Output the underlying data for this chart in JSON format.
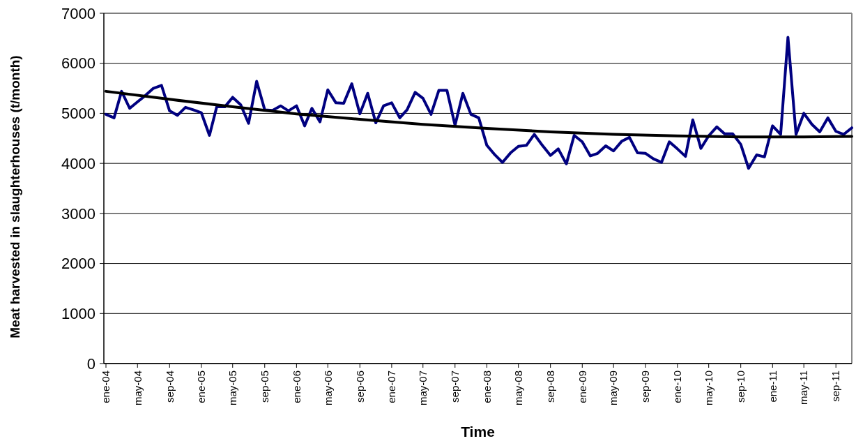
{
  "chart_data": {
    "type": "line",
    "xlabel": "Time",
    "ylabel": "Meat harvested in slaughterhouses (t/month)",
    "x": [
      "2004-01",
      "2004-02",
      "2004-03",
      "2004-04",
      "2004-05",
      "2004-06",
      "2004-07",
      "2004-08",
      "2004-09",
      "2004-10",
      "2004-11",
      "2004-12",
      "2005-01",
      "2005-02",
      "2005-03",
      "2005-04",
      "2005-05",
      "2005-06",
      "2005-07",
      "2005-08",
      "2005-09",
      "2005-10",
      "2005-11",
      "2005-12",
      "2006-01",
      "2006-02",
      "2006-03",
      "2006-04",
      "2006-05",
      "2006-06",
      "2006-07",
      "2006-08",
      "2006-09",
      "2006-10",
      "2006-11",
      "2006-12",
      "2007-01",
      "2007-02",
      "2007-03",
      "2007-04",
      "2007-05",
      "2007-06",
      "2007-07",
      "2007-08",
      "2007-09",
      "2007-10",
      "2007-11",
      "2007-12",
      "2008-01",
      "2008-02",
      "2008-03",
      "2008-04",
      "2008-05",
      "2008-06",
      "2008-07",
      "2008-08",
      "2008-09",
      "2008-10",
      "2008-11",
      "2008-12",
      "2009-01",
      "2009-02",
      "2009-03",
      "2009-04",
      "2009-05",
      "2009-06",
      "2009-07",
      "2009-08",
      "2009-09",
      "2009-10",
      "2009-11",
      "2009-12",
      "2010-01",
      "2010-02",
      "2010-03",
      "2010-04",
      "2010-05",
      "2010-06",
      "2010-07",
      "2010-08",
      "2010-09",
      "2010-10",
      "2010-11",
      "2010-12",
      "2011-01",
      "2011-02",
      "2011-03",
      "2011-04",
      "2011-05",
      "2011-06",
      "2011-07",
      "2011-08",
      "2011-09",
      "2011-10",
      "2011-11"
    ],
    "series": [
      {
        "color": "#000080",
        "line_style": "solid",
        "values": [
          4980,
          4910,
          5440,
          5100,
          5230,
          5360,
          5500,
          5560,
          5050,
          4960,
          5120,
          5070,
          5010,
          4560,
          5130,
          5130,
          5320,
          5170,
          4800,
          5640,
          5070,
          5060,
          5150,
          5050,
          5150,
          4750,
          5100,
          4830,
          5470,
          5210,
          5200,
          5590,
          4990,
          5400,
          4810,
          5150,
          5210,
          4910,
          5070,
          5420,
          5300,
          4980,
          5460,
          5460,
          4760,
          5400,
          4980,
          4910,
          4360,
          4170,
          4020,
          4210,
          4340,
          4360,
          4580,
          4360,
          4160,
          4290,
          3990,
          4560,
          4430,
          4150,
          4200,
          4350,
          4250,
          4440,
          4520,
          4210,
          4200,
          4090,
          4020,
          4430,
          4290,
          4140,
          4870,
          4300,
          4550,
          4730,
          4590,
          4590,
          4380,
          3900,
          4170,
          4130,
          4750,
          4580,
          6520,
          4580,
          5000,
          4780,
          4630,
          4910,
          4640,
          4580,
          4710
        ]
      },
      {
        "type": "line",
        "color": "#000000",
        "line_style": "solid",
        "x": [
          "2004-01",
          "2004-09",
          "2005-05",
          "2006-01",
          "2006-09",
          "2007-05",
          "2008-01",
          "2008-09",
          "2009-05",
          "2010-01",
          "2010-09",
          "2011-05",
          "2011-11"
        ],
        "values": [
          5440,
          5280,
          5130,
          4990,
          4880,
          4780,
          4700,
          4630,
          4580,
          4550,
          4530,
          4530,
          4540
        ]
      }
    ],
    "xlim": [
      "2004-01",
      "2011-11"
    ],
    "xticks": [
      {
        "value": "2004-01",
        "label": "ene-04"
      },
      {
        "value": "2004-05",
        "label": "may-04"
      },
      {
        "value": "2004-09",
        "label": "sep-04"
      },
      {
        "value": "2005-01",
        "label": "ene-05"
      },
      {
        "value": "2005-05",
        "label": "may-05"
      },
      {
        "value": "2005-09",
        "label": "sep-05"
      },
      {
        "value": "2006-01",
        "label": "ene-06"
      },
      {
        "value": "2006-05",
        "label": "may-06"
      },
      {
        "value": "2006-09",
        "label": "sep-06"
      },
      {
        "value": "2007-01",
        "label": "ene-07"
      },
      {
        "value": "2007-05",
        "label": "may-07"
      },
      {
        "value": "2007-09",
        "label": "sep-07"
      },
      {
        "value": "2008-01",
        "label": "ene-08"
      },
      {
        "value": "2008-05",
        "label": "may-08"
      },
      {
        "value": "2008-09",
        "label": "sep-08"
      },
      {
        "value": "2009-01",
        "label": "ene-09"
      },
      {
        "value": "2009-05",
        "label": "may-09"
      },
      {
        "value": "2009-09",
        "label": "sep-09"
      },
      {
        "value": "2010-01",
        "label": "ene-10"
      },
      {
        "value": "2010-05",
        "label": "may-10"
      },
      {
        "value": "2010-09",
        "label": "sep-10"
      },
      {
        "value": "2011-01",
        "label": "ene-11"
      },
      {
        "value": "2011-05",
        "label": "may-11"
      },
      {
        "value": "2011-09",
        "label": "sep-11"
      }
    ],
    "ylim": [
      0,
      7000
    ],
    "yticks": [
      0,
      1000,
      2000,
      3000,
      4000,
      5000,
      6000,
      7000
    ],
    "grid": "y",
    "marker": "none"
  }
}
